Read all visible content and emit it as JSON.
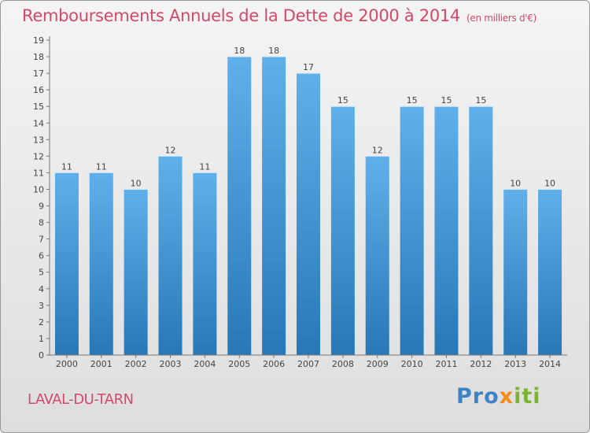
{
  "header": {
    "title": "Remboursements Annuels de la Dette de 2000 à 2014",
    "unit": "(en milliers d'€)"
  },
  "footer": {
    "place": "LAVAL-DU-TARN",
    "logo": "Proxiti"
  },
  "colors": {
    "title": "#d24a68",
    "bar_top": "#5fb0ea",
    "bar_bottom": "#2878b8"
  },
  "chart_data": {
    "type": "bar",
    "title": "Remboursements Annuels de la Dette de 2000 à 2014",
    "xlabel": "",
    "ylabel": "",
    "categories": [
      "2000",
      "2001",
      "2002",
      "2003",
      "2004",
      "2005",
      "2006",
      "2007",
      "2008",
      "2009",
      "2010",
      "2011",
      "2012",
      "2013",
      "2014"
    ],
    "values": [
      11,
      11,
      10,
      12,
      11,
      18,
      18,
      17,
      15,
      12,
      15,
      15,
      15,
      10,
      10
    ],
    "ylim": [
      0,
      19
    ],
    "yticks": [
      0,
      1,
      2,
      3,
      4,
      5,
      6,
      7,
      8,
      9,
      10,
      11,
      12,
      13,
      14,
      15,
      16,
      17,
      18,
      19
    ],
    "grid": false,
    "legend": "none"
  }
}
